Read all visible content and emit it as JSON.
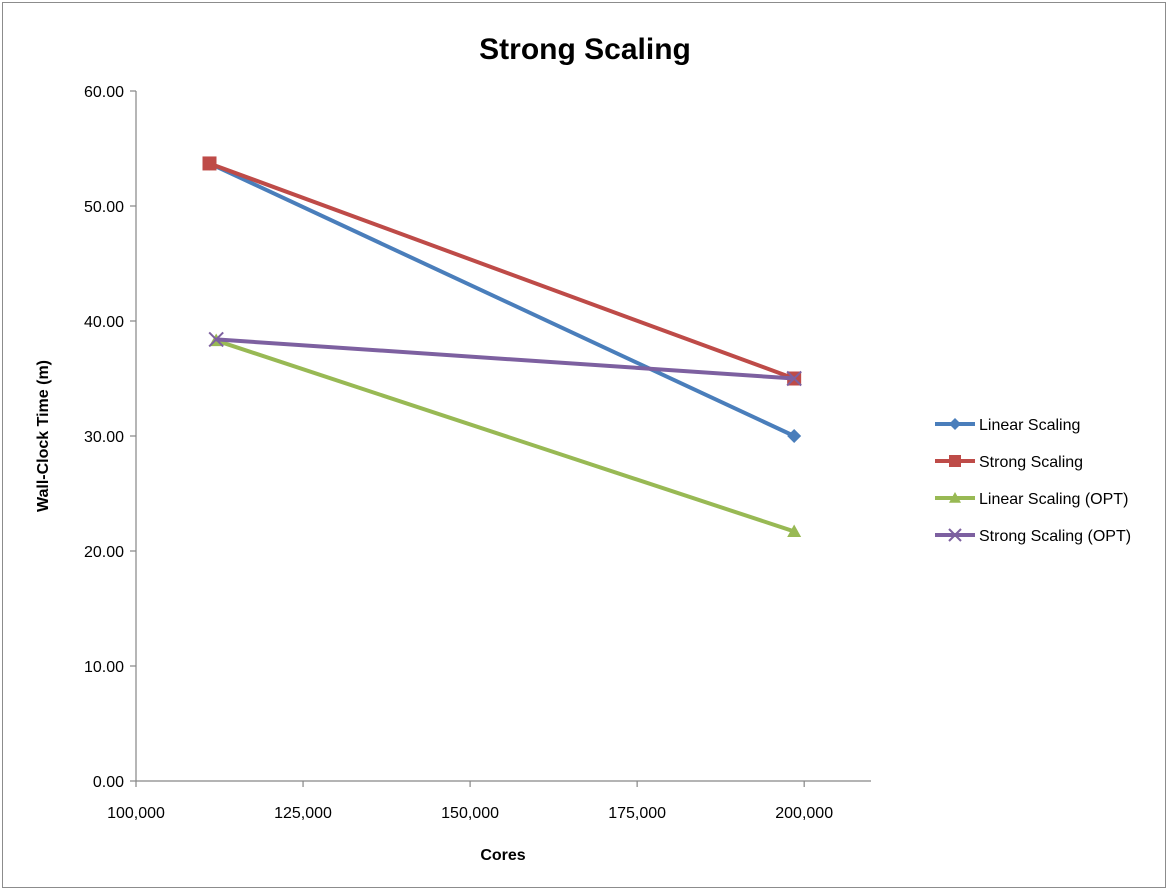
{
  "chart_data": {
    "type": "line",
    "title": "Strong Scaling",
    "xlabel": "Cores",
    "ylabel": "Wall-Clock Time (m)",
    "xlim": [
      100000,
      210000
    ],
    "ylim": [
      0,
      60
    ],
    "xticks": [
      100000,
      125000,
      150000,
      175000,
      200000
    ],
    "xtick_labels": [
      "100,000",
      "125,000",
      "150,000",
      "175,000",
      "200,000"
    ],
    "yticks": [
      0,
      10,
      20,
      30,
      40,
      50,
      60
    ],
    "ytick_labels": [
      "0.00",
      "10.00",
      "20.00",
      "30.00",
      "40.00",
      "50.00",
      "60.00"
    ],
    "grid": false,
    "legend_position": "right",
    "series": [
      {
        "name": "Linear Scaling",
        "color": "#4a7ebb",
        "marker": "diamond",
        "points": [
          [
            111000,
            53.7
          ],
          [
            198500,
            30.0
          ]
        ]
      },
      {
        "name": "Strong Scaling",
        "color": "#be4b48",
        "marker": "square",
        "points": [
          [
            111000,
            53.7
          ],
          [
            198500,
            35.0
          ]
        ]
      },
      {
        "name": "Linear Scaling (OPT)",
        "color": "#98b954",
        "marker": "triangle",
        "points": [
          [
            112000,
            38.3
          ],
          [
            198500,
            21.7
          ]
        ]
      },
      {
        "name": "Strong Scaling (OPT)",
        "color": "#7d60a0",
        "marker": "x",
        "points": [
          [
            112000,
            38.4
          ],
          [
            198500,
            35.0
          ]
        ]
      }
    ]
  }
}
